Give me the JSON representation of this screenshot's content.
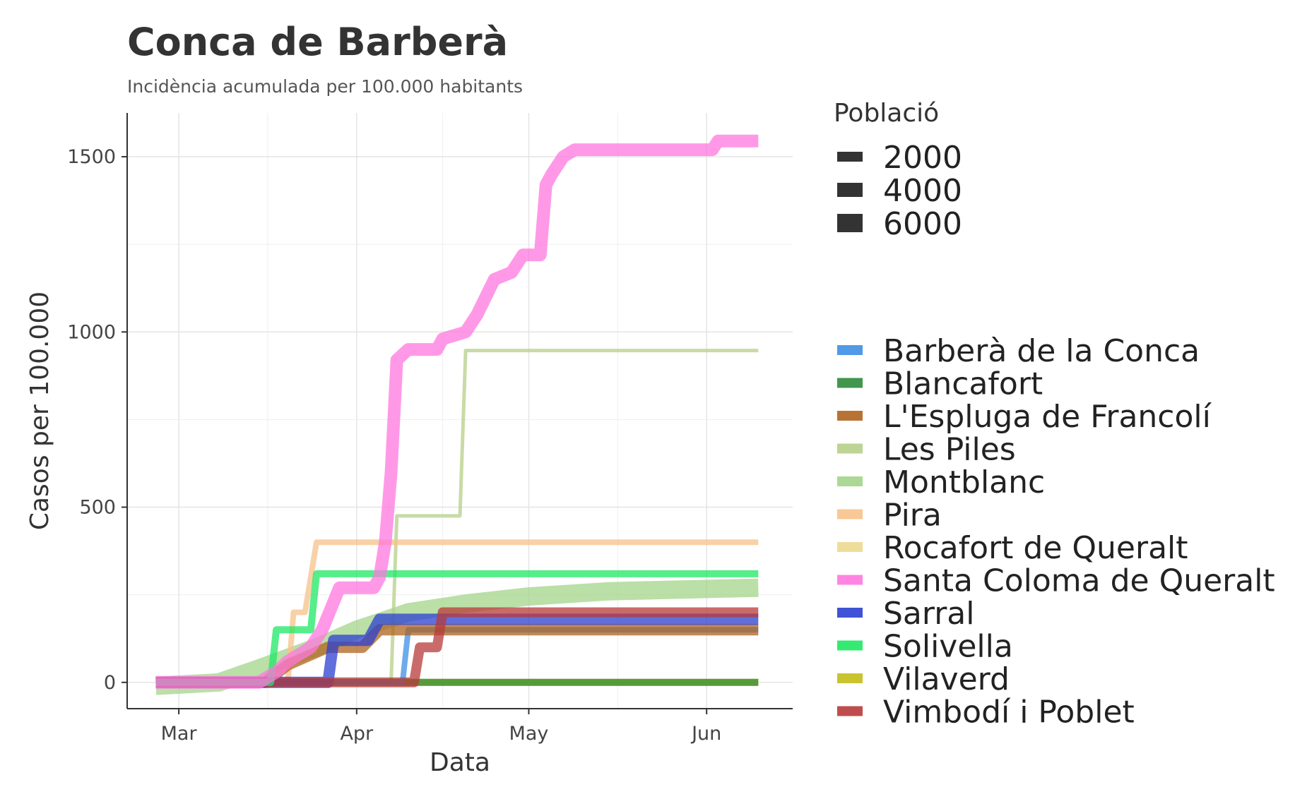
{
  "title": "Conca de Barberà",
  "subtitle": "Incidència acumulada per 100.000 habitants",
  "size_legend": {
    "title": "Població",
    "entries": [
      "2000",
      "4000",
      "6000"
    ]
  },
  "chart_data": {
    "type": "line",
    "title": "Conca de Barberà",
    "subtitle": "Incidència acumulada per 100.000 habitants",
    "xlabel": "Data",
    "ylabel": "Casos per 100.000",
    "x_ticks": [
      {
        "label": "Mar",
        "date": "2020-03-01"
      },
      {
        "label": "Apr",
        "date": "2020-04-01"
      },
      {
        "label": "May",
        "date": "2020-05-01"
      },
      {
        "label": "Jun",
        "date": "2020-06-01"
      }
    ],
    "xlim": [
      "2020-02-21",
      "2020-06-16"
    ],
    "y_ticks": [
      0,
      500,
      1000,
      1500
    ],
    "ylim": [
      -75,
      1625
    ],
    "grid": true,
    "legend_position": "right",
    "series": [
      {
        "name": "Barberà de la Conca",
        "color": "#3d8fe6",
        "points": [
          [
            "2020-02-26",
            0
          ],
          [
            "2020-04-09",
            0
          ],
          [
            "2020-04-10",
            150
          ],
          [
            "2020-06-10",
            150
          ]
        ]
      },
      {
        "name": "Blancafort",
        "color": "#2e8b3a",
        "points": [
          [
            "2020-02-26",
            0
          ],
          [
            "2020-06-10",
            0
          ]
        ]
      },
      {
        "name": "L'Espluga de Francolí",
        "color": "#b0631e",
        "points": [
          [
            "2020-02-26",
            0
          ],
          [
            "2020-03-16",
            0
          ],
          [
            "2020-03-20",
            50
          ],
          [
            "2020-03-27",
            100
          ],
          [
            "2020-04-02",
            100
          ],
          [
            "2020-04-05",
            150
          ],
          [
            "2020-06-10",
            150
          ]
        ]
      },
      {
        "name": "Les Piles",
        "color": "#b5cf88",
        "points": [
          [
            "2020-02-26",
            0
          ],
          [
            "2020-04-07",
            0
          ],
          [
            "2020-04-08",
            475
          ],
          [
            "2020-04-19",
            475
          ],
          [
            "2020-04-20",
            947
          ],
          [
            "2020-06-10",
            947
          ]
        ]
      },
      {
        "name": "Montblanc",
        "color": "#a3d48a",
        "points": [
          [
            "2020-02-26",
            -10
          ],
          [
            "2020-03-08",
            0
          ],
          [
            "2020-03-15",
            40
          ],
          [
            "2020-03-25",
            100
          ],
          [
            "2020-04-01",
            150
          ],
          [
            "2020-04-10",
            200
          ],
          [
            "2020-04-20",
            225
          ],
          [
            "2020-05-01",
            245
          ],
          [
            "2020-05-15",
            260
          ],
          [
            "2020-06-10",
            270
          ]
        ]
      },
      {
        "name": "Pira",
        "color": "#f7c28a",
        "points": [
          [
            "2020-02-26",
            0
          ],
          [
            "2020-03-20",
            0
          ],
          [
            "2020-03-21",
            200
          ],
          [
            "2020-03-23",
            200
          ],
          [
            "2020-03-25",
            400
          ],
          [
            "2020-06-10",
            400
          ]
        ]
      },
      {
        "name": "Rocafort de Queralt",
        "color": "#ecd98f",
        "points": [
          [
            "2020-02-26",
            0
          ],
          [
            "2020-06-10",
            0
          ]
        ]
      },
      {
        "name": "Santa Coloma de Queralt",
        "color": "#ff77df",
        "points": [
          [
            "2020-02-26",
            0
          ],
          [
            "2020-03-15",
            0
          ],
          [
            "2020-03-18",
            30
          ],
          [
            "2020-03-20",
            60
          ],
          [
            "2020-03-24",
            100
          ],
          [
            "2020-03-26",
            150
          ],
          [
            "2020-03-29",
            270
          ],
          [
            "2020-04-04",
            270
          ],
          [
            "2020-04-05",
            300
          ],
          [
            "2020-04-06",
            400
          ],
          [
            "2020-04-07",
            600
          ],
          [
            "2020-04-08",
            920
          ],
          [
            "2020-04-10",
            950
          ],
          [
            "2020-04-15",
            950
          ],
          [
            "2020-04-16",
            980
          ],
          [
            "2020-04-20",
            1000
          ],
          [
            "2020-04-22",
            1050
          ],
          [
            "2020-04-25",
            1150
          ],
          [
            "2020-04-28",
            1170
          ],
          [
            "2020-04-30",
            1220
          ],
          [
            "2020-05-03",
            1220
          ],
          [
            "2020-05-04",
            1420
          ],
          [
            "2020-05-05",
            1450
          ],
          [
            "2020-05-07",
            1500
          ],
          [
            "2020-05-09",
            1520
          ],
          [
            "2020-06-02",
            1520
          ],
          [
            "2020-06-03",
            1545
          ],
          [
            "2020-06-10",
            1545
          ]
        ]
      },
      {
        "name": "Sarral",
        "color": "#2b3fd0",
        "points": [
          [
            "2020-02-26",
            0
          ],
          [
            "2020-03-27",
            0
          ],
          [
            "2020-03-28",
            120
          ],
          [
            "2020-04-03",
            120
          ],
          [
            "2020-04-05",
            180
          ],
          [
            "2020-06-10",
            180
          ]
        ]
      },
      {
        "name": "Solivella",
        "color": "#1ee864",
        "points": [
          [
            "2020-02-26",
            0
          ],
          [
            "2020-03-17",
            0
          ],
          [
            "2020-03-18",
            150
          ],
          [
            "2020-03-24",
            150
          ],
          [
            "2020-03-25",
            310
          ],
          [
            "2020-06-10",
            310
          ]
        ]
      },
      {
        "name": "Vilaverd",
        "color": "#c4bd1a",
        "points": [
          [
            "2020-02-26",
            0
          ],
          [
            "2020-06-10",
            0
          ]
        ]
      },
      {
        "name": "Vimbodí i Poblet",
        "color": "#b83a3a",
        "points": [
          [
            "2020-02-26",
            0
          ],
          [
            "2020-04-11",
            0
          ],
          [
            "2020-04-12",
            100
          ],
          [
            "2020-04-15",
            100
          ],
          [
            "2020-04-16",
            200
          ],
          [
            "2020-06-10",
            200
          ]
        ]
      }
    ]
  }
}
